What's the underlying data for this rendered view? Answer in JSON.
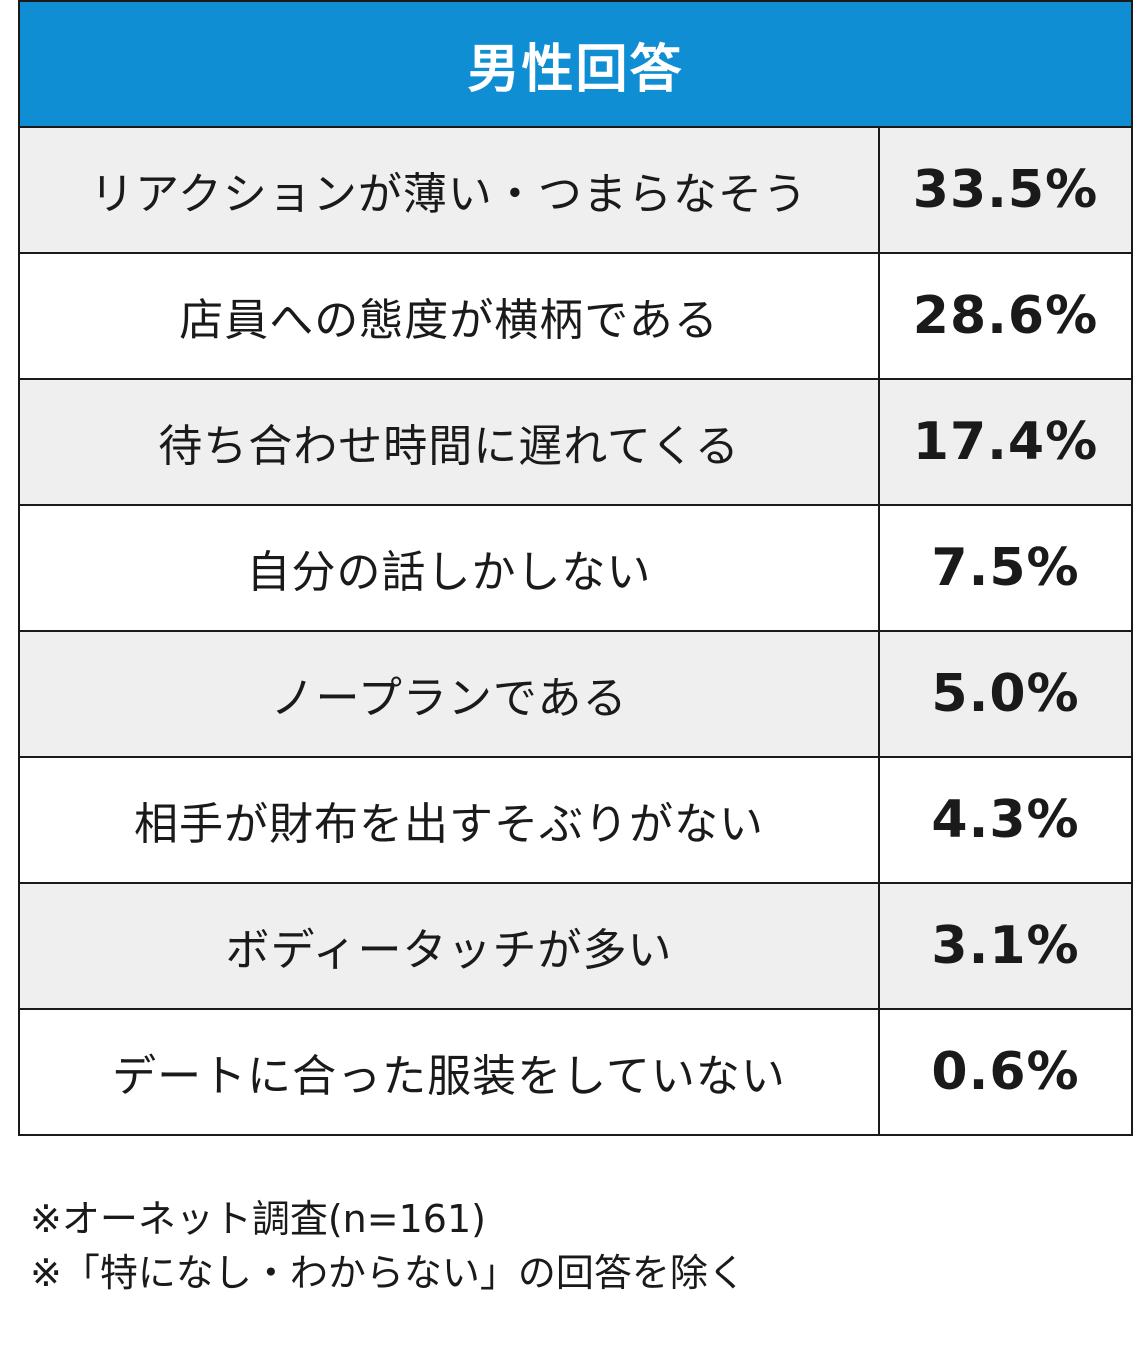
{
  "header": {
    "title": "男性回答"
  },
  "chart_data": {
    "type": "table",
    "title": "男性回答",
    "rows": [
      {
        "label": "リアクションが薄い・つまらなそう",
        "value": "33.5%"
      },
      {
        "label": "店員への態度が横柄である",
        "value": "28.6%"
      },
      {
        "label": "待ち合わせ時間に遅れてくる",
        "value": "17.4%"
      },
      {
        "label": "自分の話しかしない",
        "value": "7.5%"
      },
      {
        "label": "ノープランである",
        "value": "5.0%"
      },
      {
        "label": "相手が財布を出すそぶりがない",
        "value": "4.3%"
      },
      {
        "label": "ボディータッチが多い",
        "value": "3.1%"
      },
      {
        "label": "デートに合った服装をしていない",
        "value": "0.6%"
      }
    ]
  },
  "notes": [
    "※オーネット調査(n=161)",
    "※「特になし・わからない」の回答を除く"
  ],
  "colors": {
    "header_bg": "#0f8ed3",
    "shaded_row": "#efefef"
  }
}
